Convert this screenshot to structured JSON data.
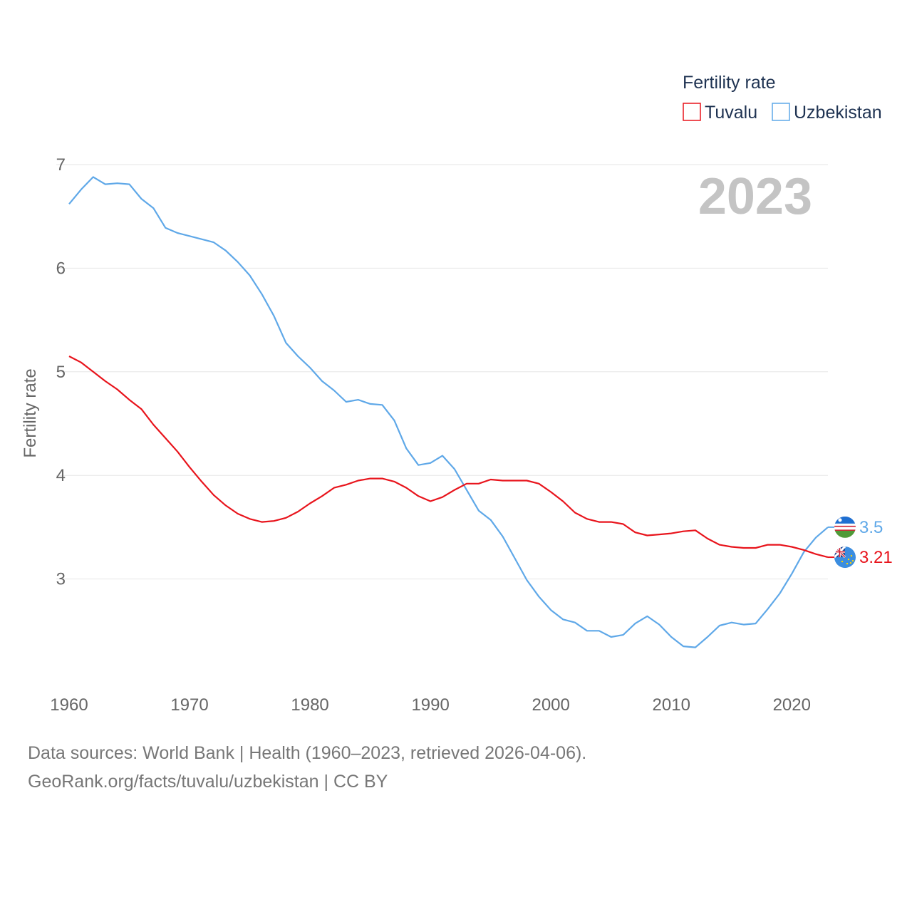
{
  "chart_data": {
    "type": "line",
    "legend_title": "Fertility rate",
    "ylabel": "Fertility rate",
    "year_label": "2023",
    "ylim": [
      2.0,
      7.0
    ],
    "xlim": [
      1960,
      2023
    ],
    "x_ticks": [
      1960,
      1970,
      1980,
      1990,
      2000,
      2010,
      2020
    ],
    "y_ticks": [
      3,
      4,
      5,
      6,
      7
    ],
    "x_tick_labels": [
      "1960",
      "1970",
      "1980",
      "1990",
      "2000",
      "2010",
      "2020"
    ],
    "y_tick_labels": [
      "3",
      "4",
      "5",
      "6",
      "7"
    ],
    "series": [
      {
        "name": "Tuvalu",
        "color": "#e8141c",
        "end_label": "3.21",
        "flag": "tuvalu-flag",
        "x": [
          1960,
          1961,
          1962,
          1963,
          1964,
          1965,
          1966,
          1967,
          1968,
          1969,
          1970,
          1971,
          1972,
          1973,
          1974,
          1975,
          1976,
          1977,
          1978,
          1979,
          1980,
          1981,
          1982,
          1983,
          1984,
          1985,
          1986,
          1987,
          1988,
          1989,
          1990,
          1991,
          1992,
          1993,
          1994,
          1995,
          1996,
          1997,
          1998,
          1999,
          2000,
          2001,
          2002,
          2003,
          2004,
          2005,
          2006,
          2007,
          2008,
          2009,
          2010,
          2011,
          2012,
          2013,
          2014,
          2015,
          2016,
          2017,
          2018,
          2019,
          2020,
          2021,
          2022,
          2023
        ],
        "values": [
          5.15,
          5.09,
          5.0,
          4.91,
          4.83,
          4.73,
          4.64,
          4.49,
          4.36,
          4.23,
          4.08,
          3.94,
          3.81,
          3.71,
          3.63,
          3.58,
          3.55,
          3.56,
          3.59,
          3.65,
          3.73,
          3.8,
          3.88,
          3.91,
          3.95,
          3.97,
          3.97,
          3.94,
          3.88,
          3.8,
          3.75,
          3.79,
          3.86,
          3.92,
          3.92,
          3.96,
          3.95,
          3.95,
          3.95,
          3.92,
          3.84,
          3.75,
          3.64,
          3.58,
          3.55,
          3.55,
          3.53,
          3.45,
          3.42,
          3.43,
          3.44,
          3.46,
          3.47,
          3.39,
          3.33,
          3.31,
          3.3,
          3.3,
          3.33,
          3.33,
          3.31,
          3.28,
          3.24,
          3.21
        ]
      },
      {
        "name": "Uzbekistan",
        "color": "#5fa8e8",
        "end_label": "3.5",
        "flag": "uzbekistan-flag",
        "x": [
          1960,
          1961,
          1962,
          1963,
          1964,
          1965,
          1966,
          1967,
          1968,
          1969,
          1970,
          1971,
          1972,
          1973,
          1974,
          1975,
          1976,
          1977,
          1978,
          1979,
          1980,
          1981,
          1982,
          1983,
          1984,
          1985,
          1986,
          1987,
          1988,
          1989,
          1990,
          1991,
          1992,
          1993,
          1994,
          1995,
          1996,
          1997,
          1998,
          1999,
          2000,
          2001,
          2002,
          2003,
          2004,
          2005,
          2006,
          2007,
          2008,
          2009,
          2010,
          2011,
          2012,
          2013,
          2014,
          2015,
          2016,
          2017,
          2018,
          2019,
          2020,
          2021,
          2022,
          2023
        ],
        "values": [
          6.62,
          6.76,
          6.88,
          6.81,
          6.82,
          6.81,
          6.67,
          6.58,
          6.39,
          6.34,
          6.31,
          6.28,
          6.25,
          6.17,
          6.06,
          5.93,
          5.75,
          5.54,
          5.28,
          5.15,
          5.04,
          4.91,
          4.82,
          4.71,
          4.73,
          4.69,
          4.68,
          4.53,
          4.26,
          4.1,
          4.12,
          4.19,
          4.06,
          3.86,
          3.66,
          3.57,
          3.41,
          3.2,
          2.99,
          2.83,
          2.7,
          2.61,
          2.58,
          2.5,
          2.5,
          2.44,
          2.46,
          2.57,
          2.64,
          2.56,
          2.44,
          2.35,
          2.34,
          2.44,
          2.55,
          2.58,
          2.56,
          2.57,
          2.71,
          2.86,
          3.05,
          3.26,
          3.4,
          3.5
        ]
      }
    ]
  },
  "footer": {
    "line1": "Data sources: World Bank | Health (1960–2023, retrieved 2026-04-06).",
    "line2": "GeoRank.org/facts/tuvalu/uzbekistan | CC BY"
  }
}
